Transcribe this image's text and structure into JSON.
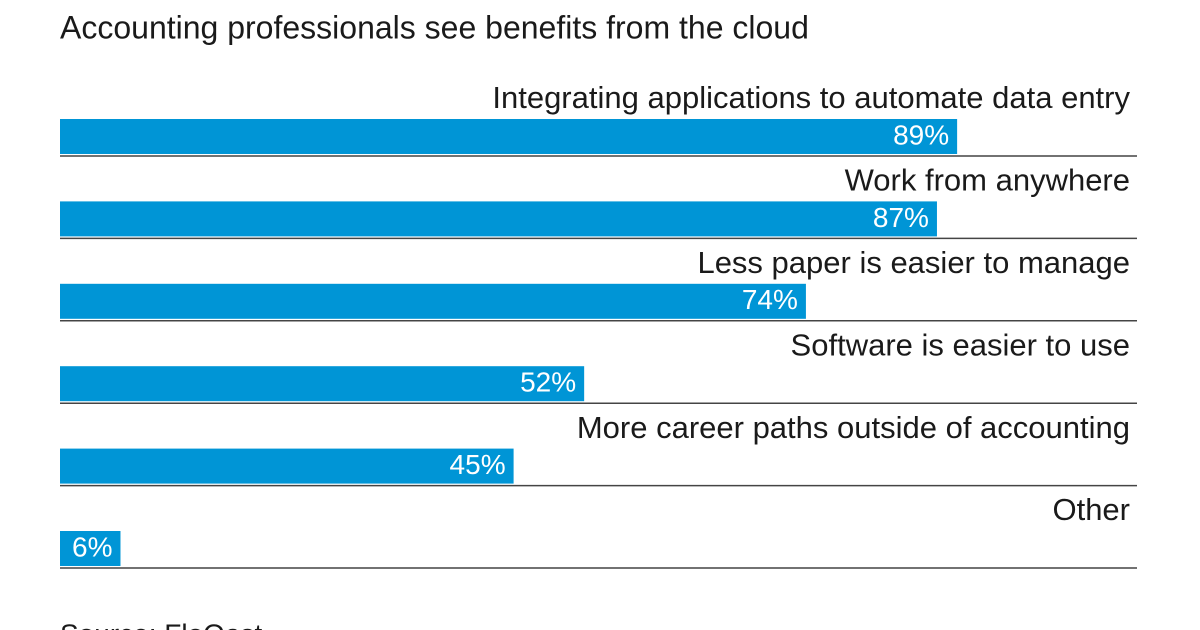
{
  "chart_data": {
    "type": "bar",
    "orientation": "horizontal",
    "subtitle": "Accounting professionals see benefits from the cloud",
    "categories": [
      "Integrating applications to automate data entry",
      "Work from anywhere",
      "Less paper is easier to manage",
      "Software is easier to use",
      "More career paths outside of accounting",
      "Other"
    ],
    "values": [
      89,
      87,
      74,
      52,
      45,
      6
    ],
    "value_labels": [
      "89%",
      "87%",
      "74%",
      "52%",
      "45%",
      "6%"
    ],
    "color": "#0095d6",
    "source": "Source: FloQast"
  }
}
